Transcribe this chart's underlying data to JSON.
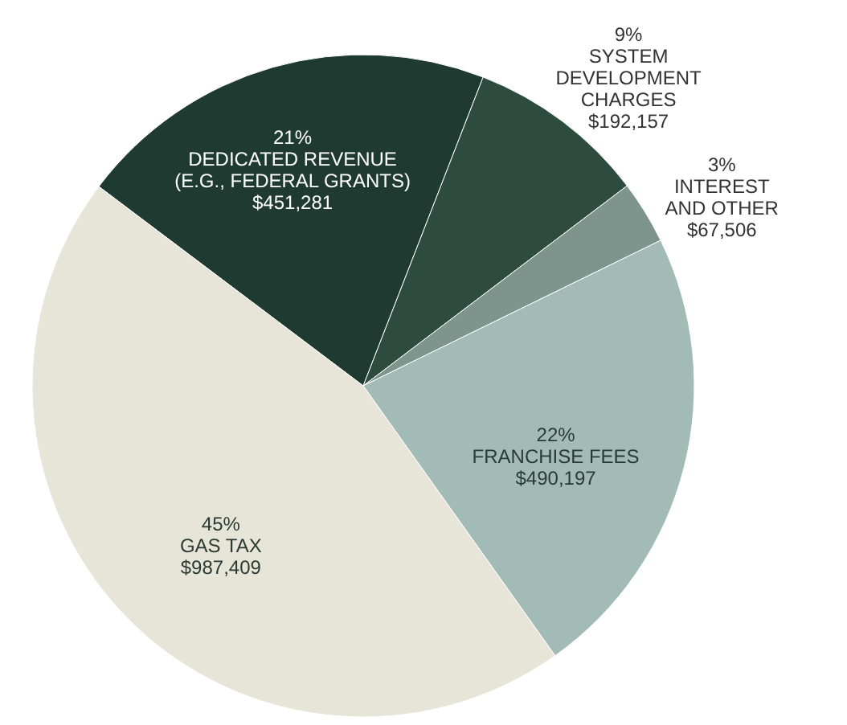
{
  "chart_data": {
    "type": "pie",
    "categories": [
      "DEDICATED REVENUE\n(E.G., FEDERAL GRANTS)",
      "SYSTEM\nDEVELOPMENT\nCHARGES",
      "INTEREST\nAND OTHER",
      "FRANCHISE FEES",
      "GAS TAX"
    ],
    "values": [
      451281,
      192157,
      67506,
      490197,
      987409
    ],
    "value_labels": [
      "$451,281",
      "$192,157",
      "$67,506",
      "$490,197",
      "$987,409"
    ],
    "colors": [
      "#1f3a31",
      "#2e4b40",
      "#7d958d",
      "#a3bbb6",
      "#e7e4d8"
    ],
    "annotations": [
      {
        "text": "21%",
        "x": "DEDICATED REVENUE\n(E.G., FEDERAL GRANTS)"
      },
      {
        "text": "9%",
        "x": "SYSTEM\nDEVELOPMENT\nCHARGES"
      },
      {
        "text": "3%",
        "x": "INTEREST\nAND OTHER"
      },
      {
        "text": "22%",
        "x": "FRANCHISE FEES"
      },
      {
        "text": "45%",
        "x": "GAS TAX"
      }
    ]
  }
}
